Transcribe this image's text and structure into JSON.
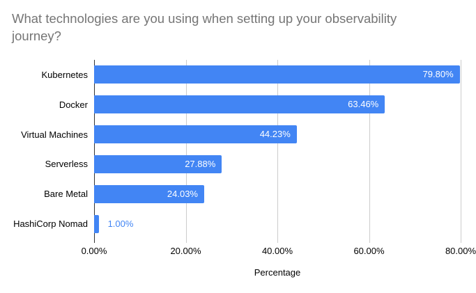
{
  "chart_data": {
    "type": "bar",
    "orientation": "horizontal",
    "title": "What technologies are you using when setting up your observability journey?",
    "categories": [
      "Kubernetes",
      "Docker",
      "Virtual Machines",
      "Serverless",
      "Bare Metal",
      "HashiCorp Nomad"
    ],
    "values": [
      79.8,
      63.46,
      44.23,
      27.88,
      24.03,
      1.0
    ],
    "value_labels": [
      "79.80%",
      "63.46%",
      "44.23%",
      "27.88%",
      "24.03%",
      "1.00%"
    ],
    "xlabel": "Percentage",
    "xlim": [
      0,
      80
    ],
    "x_ticks": [
      0,
      20,
      40,
      60,
      80
    ],
    "x_tick_labels": [
      "0.00%",
      "20.00%",
      "40.00%",
      "60.00%",
      "80.00%"
    ],
    "legend": "none",
    "grid": "vertical-only",
    "colors": {
      "bar": "#4285f4",
      "value_label_inside": "#ffffff",
      "value_label_outside": "#4285f4",
      "title_text": "#757575",
      "axis_text": "#000000",
      "gridline": "#cccccc",
      "axis_line": "#333333",
      "background": "#ffffff"
    }
  }
}
